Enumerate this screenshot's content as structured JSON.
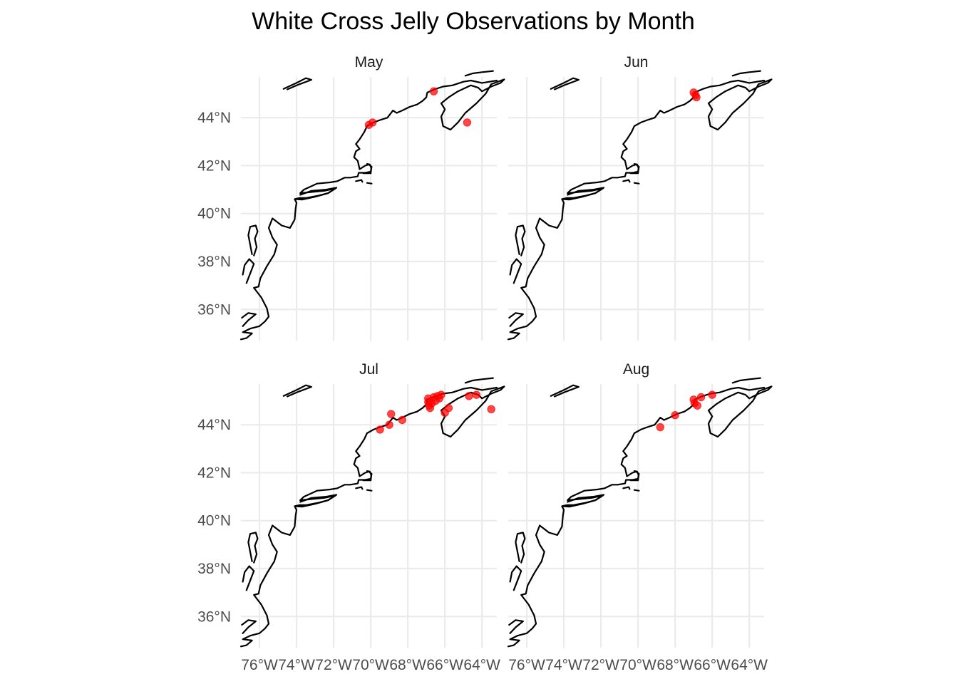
{
  "chart_data": {
    "type": "scatter",
    "title": "White Cross Jelly Observations by Month",
    "xlabel": "",
    "ylabel": "",
    "xlim": [
      -77.0,
      -63.2
    ],
    "ylim": [
      34.7,
      45.7
    ],
    "x_ticks": [
      -76,
      -74,
      -72,
      -70,
      -68,
      -66,
      -64
    ],
    "x_tick_labels": [
      "76°W",
      "74°W",
      "72°W",
      "70°W",
      "68°W",
      "66°W",
      "64°W"
    ],
    "y_ticks": [
      36,
      38,
      40,
      42,
      44
    ],
    "y_tick_labels": [
      "36°N",
      "38°N",
      "40°N",
      "42°N",
      "44°N"
    ],
    "grid": true,
    "legend": "none",
    "point_color": "#ff0000",
    "coastline_color": "#000000",
    "facets": [
      {
        "label": "May",
        "points": [
          {
            "lon": -66.6,
            "lat": 45.1
          },
          {
            "lon": -64.8,
            "lat": 43.8
          },
          {
            "lon": -69.9,
            "lat": 43.8
          },
          {
            "lon": -70.1,
            "lat": 43.7
          }
        ]
      },
      {
        "label": "Jun",
        "points": [
          {
            "lon": -67.0,
            "lat": 45.05
          },
          {
            "lon": -66.9,
            "lat": 44.95
          },
          {
            "lon": -66.85,
            "lat": 44.85
          }
        ]
      },
      {
        "label": "Jul",
        "points": [
          {
            "lon": -69.5,
            "lat": 43.8
          },
          {
            "lon": -69.0,
            "lat": 44.0
          },
          {
            "lon": -68.9,
            "lat": 44.45
          },
          {
            "lon": -68.3,
            "lat": 44.2
          },
          {
            "lon": -66.9,
            "lat": 45.1
          },
          {
            "lon": -66.9,
            "lat": 44.95
          },
          {
            "lon": -66.85,
            "lat": 44.8
          },
          {
            "lon": -66.8,
            "lat": 44.7
          },
          {
            "lon": -66.7,
            "lat": 44.9
          },
          {
            "lon": -66.6,
            "lat": 45.15
          },
          {
            "lon": -66.5,
            "lat": 45.0
          },
          {
            "lon": -66.4,
            "lat": 45.2
          },
          {
            "lon": -66.3,
            "lat": 45.1
          },
          {
            "lon": -66.2,
            "lat": 45.25
          },
          {
            "lon": -66.0,
            "lat": 44.5
          },
          {
            "lon": -65.8,
            "lat": 44.7
          },
          {
            "lon": -64.7,
            "lat": 45.2
          },
          {
            "lon": -64.3,
            "lat": 45.25
          },
          {
            "lon": -63.5,
            "lat": 44.65
          }
        ]
      },
      {
        "label": "Aug",
        "points": [
          {
            "lon": -68.8,
            "lat": 43.9
          },
          {
            "lon": -68.0,
            "lat": 44.4
          },
          {
            "lon": -67.0,
            "lat": 45.05
          },
          {
            "lon": -66.95,
            "lat": 44.9
          },
          {
            "lon": -66.8,
            "lat": 44.8
          },
          {
            "lon": -66.6,
            "lat": 45.15
          },
          {
            "lon": -66.0,
            "lat": 45.25
          }
        ]
      }
    ]
  }
}
